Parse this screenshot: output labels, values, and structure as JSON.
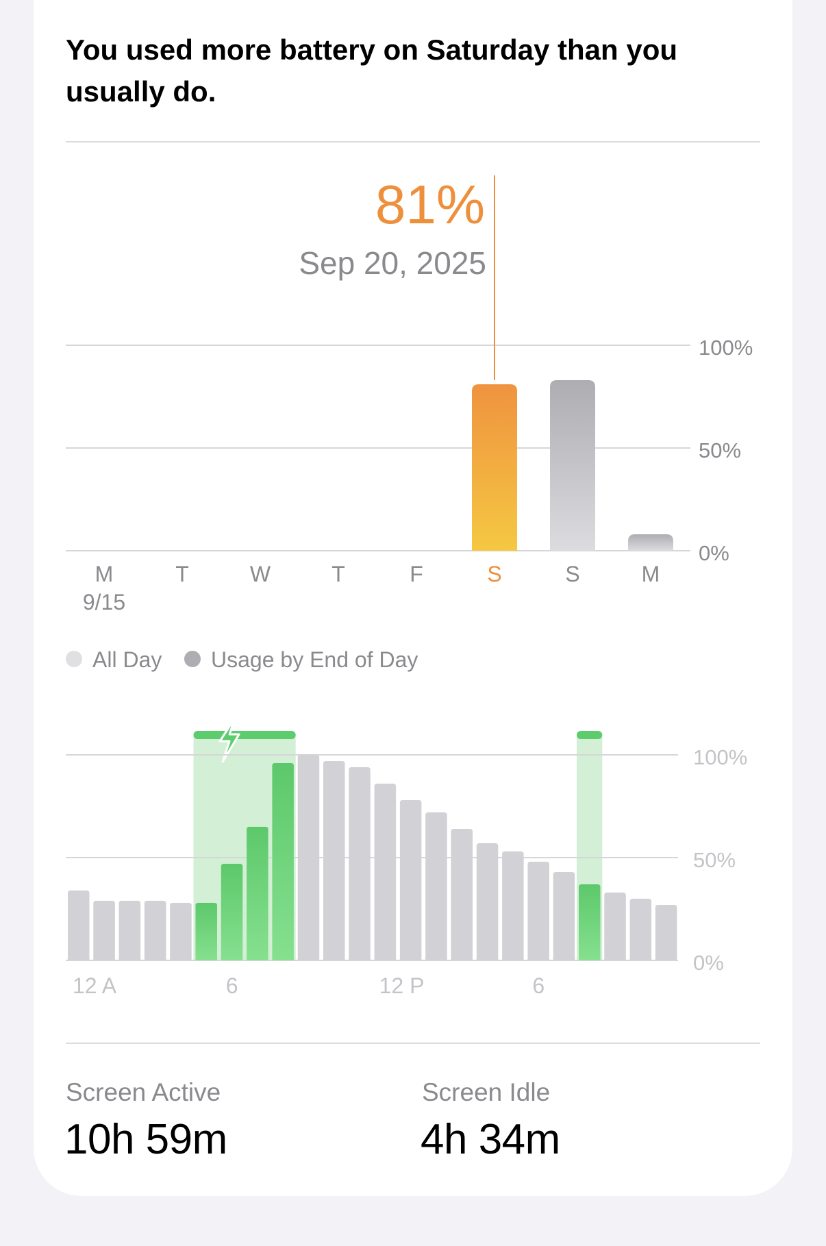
{
  "headline": "You used more battery on Saturday than you usually do.",
  "selection": {
    "value_label": "81%",
    "date_label": "Sep 20, 2025"
  },
  "colors": {
    "selected_top": "#ef9340",
    "selected_bottom": "#f5c842",
    "bar_gray_top": "#adadb2",
    "bar_gray_bottom": "#dcdcdf",
    "charging_green": "#5dcc6d",
    "charging_band": "#d3efd6",
    "hourly_gray": "#d1d1d6",
    "accent_orange": "#ee8f3c"
  },
  "weekly_chart": {
    "type": "bar",
    "categories": [
      "M",
      "T",
      "W",
      "T",
      "F",
      "S",
      "S",
      "M"
    ],
    "sub_labels": [
      "9/15",
      "",
      "",
      "",
      "",
      "",
      "",
      ""
    ],
    "values": [
      0,
      0,
      0,
      0,
      0,
      81,
      83,
      8
    ],
    "selected_index": 5,
    "y_ticks": [
      "100%",
      "50%",
      "0%"
    ],
    "ylim": [
      0,
      100
    ]
  },
  "legend": {
    "items": [
      {
        "label": "All Day",
        "color": "#e0e0e3",
        "icon": "light-gray-dot-icon"
      },
      {
        "label": "Usage by End of Day",
        "color": "#aeaeb2",
        "icon": "gray-dot-icon"
      }
    ]
  },
  "chart_data": {
    "type": "bar",
    "title": "",
    "x_tick_labels": [
      "12 A",
      "6",
      "12 P",
      "6"
    ],
    "x_tick_hours": [
      0,
      6,
      12,
      18
    ],
    "y_ticks": [
      "100%",
      "50%",
      "0%"
    ],
    "ylim": [
      0,
      100
    ],
    "hours": [
      0,
      1,
      2,
      3,
      4,
      5,
      6,
      7,
      8,
      9,
      10,
      11,
      12,
      13,
      14,
      15,
      16,
      17,
      18,
      19,
      20,
      21,
      22,
      23
    ],
    "values": [
      34,
      29,
      29,
      29,
      28,
      28,
      47,
      65,
      96,
      100,
      97,
      94,
      86,
      78,
      72,
      64,
      57,
      53,
      48,
      43,
      37,
      33,
      30,
      27
    ],
    "charging": [
      false,
      false,
      false,
      false,
      false,
      true,
      true,
      true,
      true,
      false,
      false,
      false,
      false,
      false,
      false,
      false,
      false,
      false,
      false,
      false,
      true,
      false,
      false,
      false
    ],
    "charging_ranges": [
      [
        5,
        9
      ],
      [
        20,
        21
      ]
    ],
    "charging_icon": "lightning-bolt-icon"
  },
  "stats": {
    "screen_active_label": "Screen Active",
    "screen_active_value": "10h 59m",
    "screen_idle_label": "Screen Idle",
    "screen_idle_value": "4h 34m"
  }
}
